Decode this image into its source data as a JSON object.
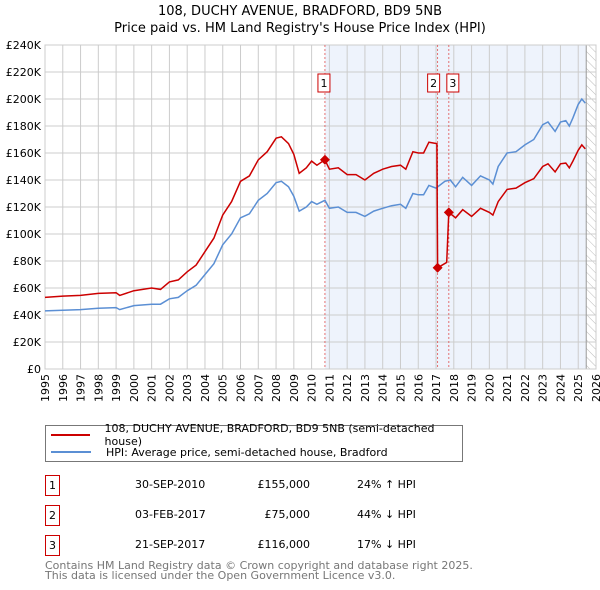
{
  "title": "108, DUCHY AVENUE, BRADFORD, BD9 5NB",
  "subtitle": "Price paid vs. HM Land Registry's House Price Index (HPI)",
  "chart_data": {
    "type": "line",
    "xlim": [
      1995,
      2026
    ],
    "ylim": [
      0,
      240000
    ],
    "x_ticks": [
      1995,
      1996,
      1997,
      1998,
      1999,
      2000,
      2001,
      2002,
      2003,
      2004,
      2005,
      2006,
      2007,
      2008,
      2009,
      2010,
      2011,
      2012,
      2013,
      2014,
      2015,
      2016,
      2017,
      2018,
      2019,
      2020,
      2021,
      2022,
      2023,
      2024,
      2025,
      2026
    ],
    "y_ticks": [
      {
        "v": 0,
        "label": "£0"
      },
      {
        "v": 20000,
        "label": "£20K"
      },
      {
        "v": 40000,
        "label": "£40K"
      },
      {
        "v": 60000,
        "label": "£60K"
      },
      {
        "v": 80000,
        "label": "£80K"
      },
      {
        "v": 100000,
        "label": "£100K"
      },
      {
        "v": 120000,
        "label": "£120K"
      },
      {
        "v": 140000,
        "label": "£140K"
      },
      {
        "v": 160000,
        "label": "£160K"
      },
      {
        "v": 180000,
        "label": "£180K"
      },
      {
        "v": 200000,
        "label": "£200K"
      },
      {
        "v": 220000,
        "label": "£220K"
      },
      {
        "v": 240000,
        "label": "£240K"
      }
    ],
    "grid": true,
    "shaded_range": [
      2010.75,
      2025.45
    ],
    "hatched_from": 2025.45,
    "series": [
      {
        "name": "108, DUCHY AVENUE, BRADFORD, BD9 5NB (semi-detached house)",
        "color": "#cc0000",
        "points": [
          [
            1995,
            53
          ],
          [
            1996,
            54
          ],
          [
            1997,
            54.5
          ],
          [
            1998,
            56
          ],
          [
            1999,
            56.5
          ],
          [
            1999.2,
            54.5
          ],
          [
            2000,
            58
          ],
          [
            2001,
            60
          ],
          [
            2001.5,
            59
          ],
          [
            2002,
            64.5
          ],
          [
            2002.5,
            66
          ],
          [
            2003,
            72
          ],
          [
            2003.5,
            77
          ],
          [
            2004,
            87
          ],
          [
            2004.5,
            97
          ],
          [
            2005,
            114
          ],
          [
            2005.5,
            124
          ],
          [
            2006,
            139
          ],
          [
            2006.5,
            143
          ],
          [
            2007,
            155
          ],
          [
            2007.5,
            161
          ],
          [
            2008,
            171
          ],
          [
            2008.3,
            172
          ],
          [
            2008.7,
            167
          ],
          [
            2009,
            159
          ],
          [
            2009.3,
            145
          ],
          [
            2009.7,
            149
          ],
          [
            2010,
            154
          ],
          [
            2010.3,
            151
          ],
          [
            2010.75,
            155
          ],
          [
            2011,
            148
          ],
          [
            2011.5,
            149
          ],
          [
            2012,
            144
          ],
          [
            2012.5,
            144
          ],
          [
            2013,
            140
          ],
          [
            2013.5,
            145
          ],
          [
            2014,
            148
          ],
          [
            2014.5,
            150
          ],
          [
            2015,
            151
          ],
          [
            2015.3,
            148
          ],
          [
            2015.7,
            161
          ],
          [
            2016,
            160
          ],
          [
            2016.3,
            160
          ],
          [
            2016.6,
            168
          ],
          [
            2017.05,
            167
          ],
          [
            2017.09,
            75
          ],
          [
            2017.6,
            79
          ],
          [
            2017.72,
            116
          ],
          [
            2018.1,
            112
          ],
          [
            2018.5,
            118
          ],
          [
            2019,
            113
          ],
          [
            2019.5,
            119
          ],
          [
            2020,
            116
          ],
          [
            2020.2,
            114
          ],
          [
            2020.5,
            124
          ],
          [
            2021,
            133
          ],
          [
            2021.5,
            134
          ],
          [
            2022,
            138
          ],
          [
            2022.5,
            141
          ],
          [
            2023,
            150
          ],
          [
            2023.3,
            152
          ],
          [
            2023.7,
            146
          ],
          [
            2024,
            152
          ],
          [
            2024.3,
            152.5
          ],
          [
            2024.5,
            149
          ],
          [
            2024.7,
            154
          ],
          [
            2025,
            162
          ],
          [
            2025.2,
            166
          ],
          [
            2025.4,
            163
          ]
        ]
      },
      {
        "name": "HPI: Average price, semi-detached house, Bradford",
        "color": "#5b8fd4",
        "points": [
          [
            1995,
            43
          ],
          [
            1996,
            43.5
          ],
          [
            1997,
            44
          ],
          [
            1998,
            45
          ],
          [
            1999,
            45.5
          ],
          [
            1999.2,
            44
          ],
          [
            2000,
            47
          ],
          [
            2001,
            48
          ],
          [
            2001.5,
            48
          ],
          [
            2002,
            52
          ],
          [
            2002.5,
            53
          ],
          [
            2003,
            58
          ],
          [
            2003.5,
            62
          ],
          [
            2004,
            70
          ],
          [
            2004.5,
            78
          ],
          [
            2005,
            92
          ],
          [
            2005.5,
            100
          ],
          [
            2006,
            112
          ],
          [
            2006.5,
            115
          ],
          [
            2007,
            125
          ],
          [
            2007.5,
            130
          ],
          [
            2008,
            138
          ],
          [
            2008.3,
            139
          ],
          [
            2008.7,
            135
          ],
          [
            2009,
            128
          ],
          [
            2009.3,
            117
          ],
          [
            2009.7,
            120
          ],
          [
            2010,
            124
          ],
          [
            2010.3,
            122
          ],
          [
            2010.75,
            125
          ],
          [
            2011,
            119
          ],
          [
            2011.5,
            120
          ],
          [
            2012,
            116
          ],
          [
            2012.5,
            116
          ],
          [
            2013,
            113
          ],
          [
            2013.5,
            117
          ],
          [
            2014,
            119
          ],
          [
            2014.5,
            121
          ],
          [
            2015,
            122
          ],
          [
            2015.3,
            119
          ],
          [
            2015.7,
            130
          ],
          [
            2016,
            129
          ],
          [
            2016.3,
            129
          ],
          [
            2016.6,
            136
          ],
          [
            2017,
            134
          ],
          [
            2017.5,
            139
          ],
          [
            2017.8,
            140
          ],
          [
            2018.1,
            135
          ],
          [
            2018.5,
            142
          ],
          [
            2019,
            136
          ],
          [
            2019.5,
            143
          ],
          [
            2020,
            140
          ],
          [
            2020.2,
            137
          ],
          [
            2020.5,
            150
          ],
          [
            2021,
            160
          ],
          [
            2021.5,
            161
          ],
          [
            2022,
            166
          ],
          [
            2022.5,
            170
          ],
          [
            2023,
            181
          ],
          [
            2023.3,
            183
          ],
          [
            2023.7,
            176
          ],
          [
            2024,
            183
          ],
          [
            2024.3,
            184
          ],
          [
            2024.5,
            180
          ],
          [
            2024.7,
            186
          ],
          [
            2025,
            196
          ],
          [
            2025.2,
            200
          ],
          [
            2025.4,
            197
          ]
        ]
      }
    ],
    "sales": [
      {
        "id": "1",
        "x": 2010.75,
        "y": 155000
      },
      {
        "id": "2",
        "x": 2017.09,
        "y": 75000
      },
      {
        "id": "3",
        "x": 2017.72,
        "y": 116000
      }
    ]
  },
  "legend": [
    {
      "label": "108, DUCHY AVENUE, BRADFORD, BD9 5NB (semi-detached house)",
      "color": "#cc0000"
    },
    {
      "label": "HPI: Average price, semi-detached house, Bradford",
      "color": "#5b8fd4"
    }
  ],
  "transactions": [
    {
      "id": "1",
      "date": "30-SEP-2010",
      "price": "£155,000",
      "hpi": "24% ↑ HPI"
    },
    {
      "id": "2",
      "date": "03-FEB-2017",
      "price": "£75,000",
      "hpi": "44% ↓ HPI"
    },
    {
      "id": "3",
      "date": "21-SEP-2017",
      "price": "£116,000",
      "hpi": "17% ↓ HPI"
    }
  ],
  "footer": [
    "Contains HM Land Registry data © Crown copyright and database right 2025.",
    "This data is licensed under the Open Government Licence v3.0."
  ]
}
